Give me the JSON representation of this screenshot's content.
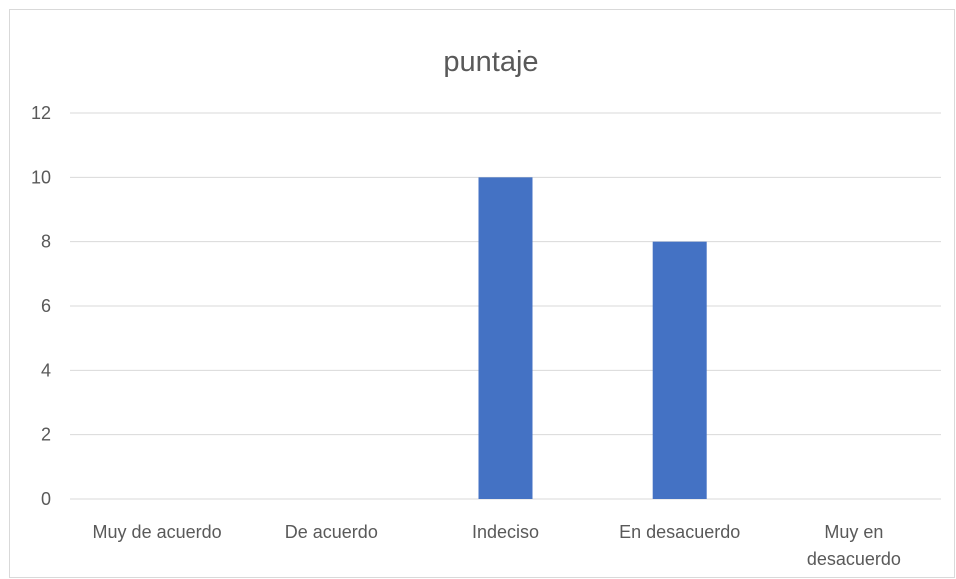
{
  "chart_data": {
    "type": "bar",
    "title": "puntaje",
    "categories": [
      "Muy de acuerdo",
      "De acuerdo",
      "Indeciso",
      "En desacuerdo",
      "Muy en desacuerdo"
    ],
    "category_lines": [
      [
        "Muy de acuerdo"
      ],
      [
        "De acuerdo"
      ],
      [
        "Indeciso"
      ],
      [
        "En desacuerdo"
      ],
      [
        "Muy en",
        "desacuerdo"
      ]
    ],
    "values": [
      0,
      0,
      10,
      8,
      0
    ],
    "ylim": [
      0,
      12
    ],
    "yticks": [
      0,
      2,
      4,
      6,
      8,
      10,
      12
    ],
    "grid": true,
    "legend": "none",
    "bar_color": "#4472c4"
  }
}
